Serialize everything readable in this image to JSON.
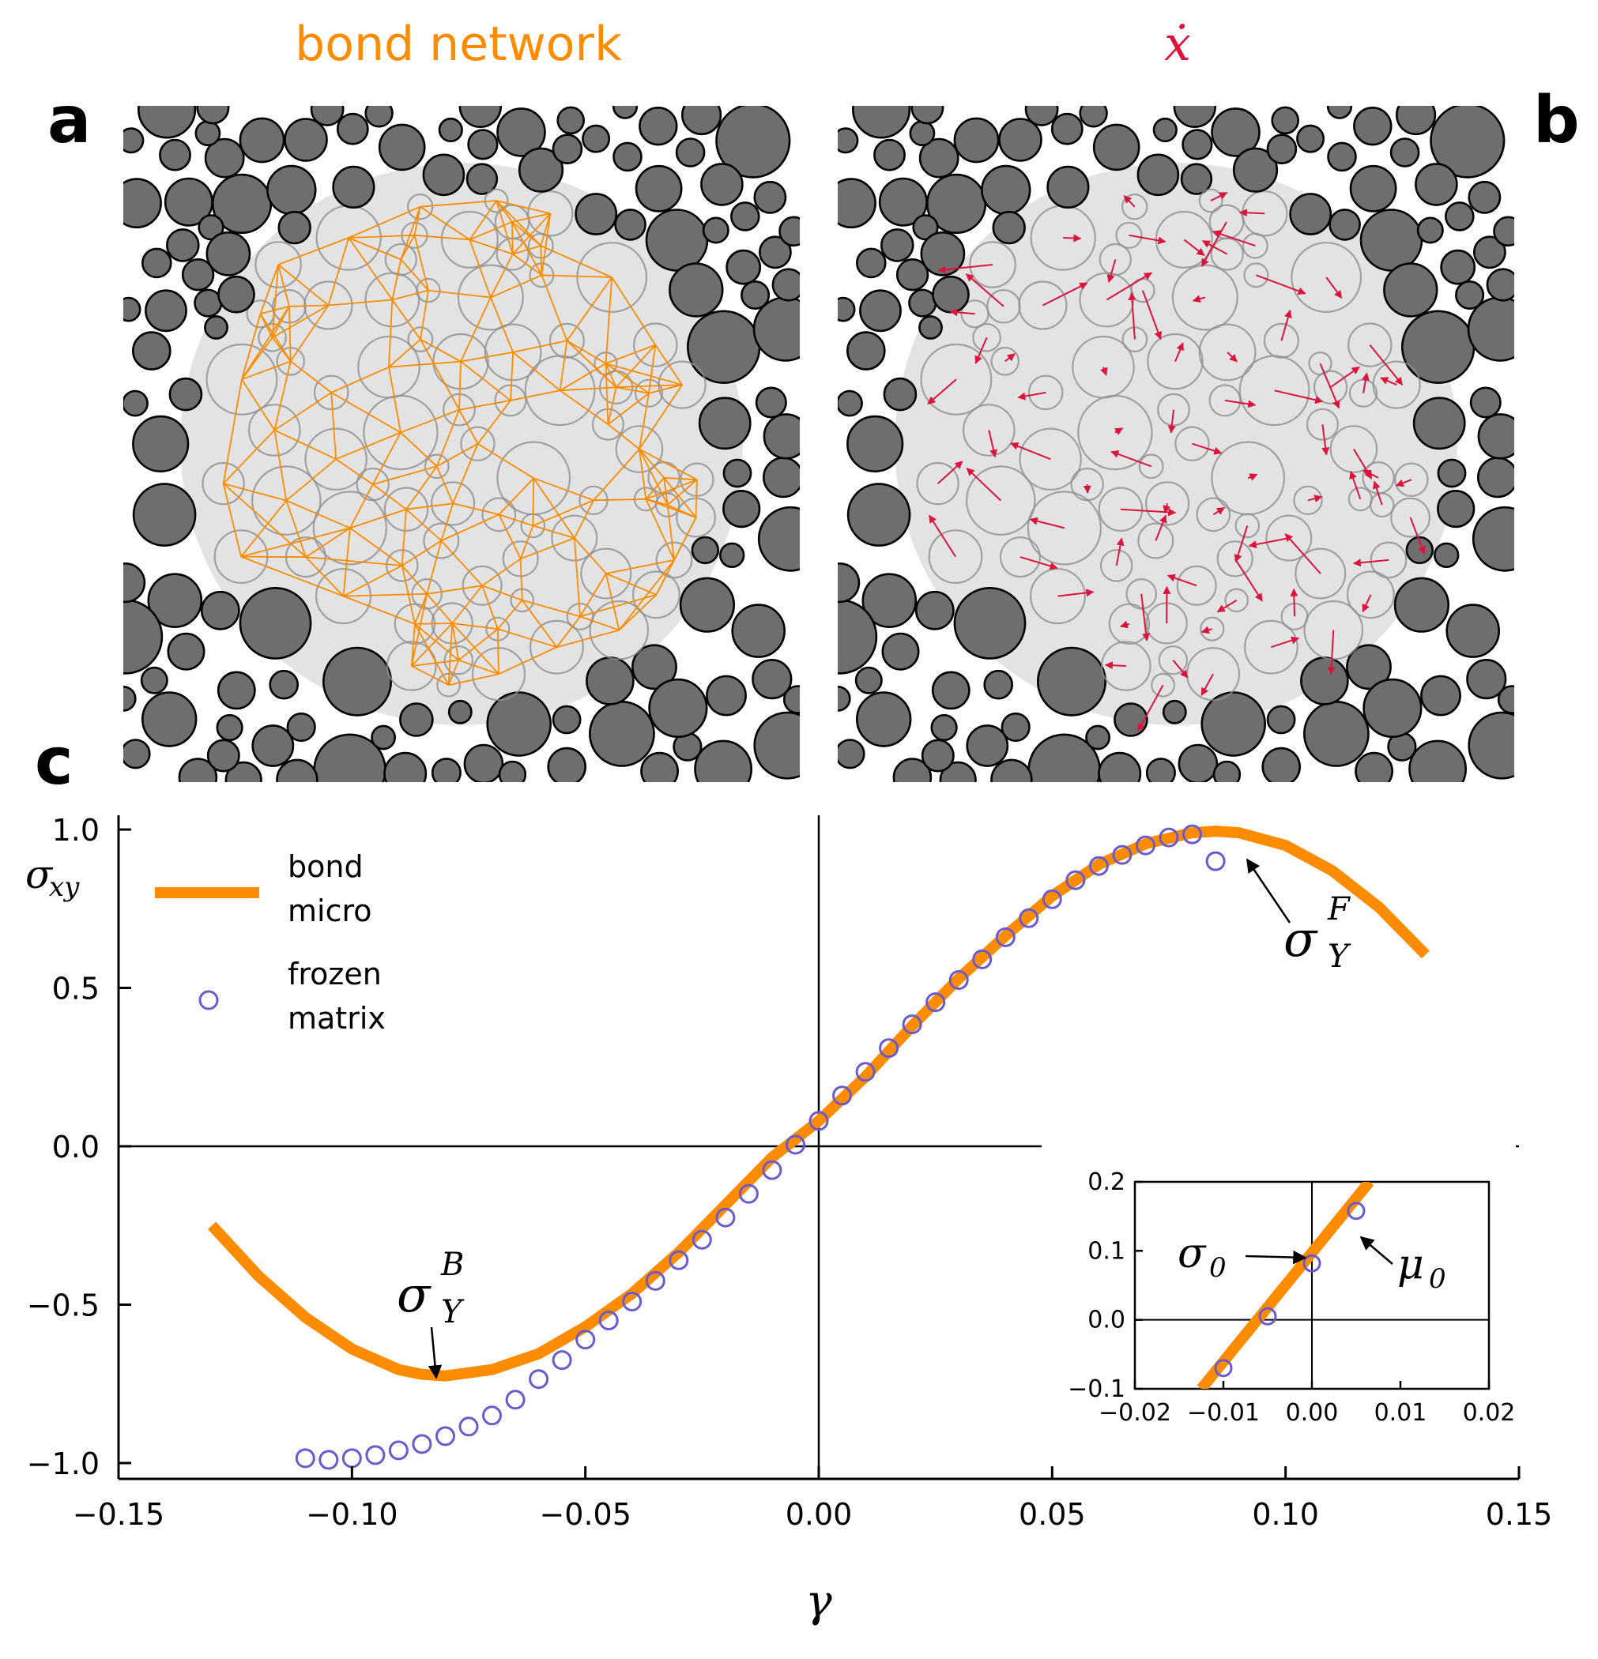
{
  "panels": {
    "a": {
      "letter": "a",
      "title": "bond network",
      "title_color": "#ff8c00",
      "description": "jammed packing with central region and orange bond network"
    },
    "b": {
      "letter": "b",
      "title": "ẋ",
      "title_color": "#dc143c",
      "description": "jammed packing with central region and crimson displacement-rate arrows"
    },
    "c": {
      "letter": "c"
    }
  },
  "colors": {
    "bond": "#ff8c00",
    "frozen": "#6a5acd",
    "arrows": "#dc143c",
    "particle_fill": "#6e6e6e",
    "region_fill": "#e3e3e3",
    "axes": "#000000"
  },
  "chart_data": [
    {
      "type": "line",
      "title": "",
      "xlabel": "γ",
      "ylabel": "σxy",
      "xlim": [
        -0.15,
        0.15
      ],
      "ylim": [
        -1.05,
        1.05
      ],
      "xticks": [
        -0.15,
        -0.1,
        -0.05,
        0.0,
        0.05,
        0.1,
        0.15
      ],
      "xtick_labels": [
        "−0.15",
        "−0.10",
        "−0.05",
        "0.00",
        "0.05",
        "0.10",
        "0.15"
      ],
      "yticks": [
        -1.0,
        -0.5,
        0.0,
        0.5,
        1.0
      ],
      "ytick_labels": [
        "−1.0",
        "−0.5",
        "0.0",
        "0.5",
        "1.0"
      ],
      "legend": {
        "placement": "top-left",
        "entries": [
          {
            "label_lines": [
              "bond",
              "micro"
            ],
            "marker": "line"
          },
          {
            "label_lines": [
              "frozen",
              "matrix"
            ],
            "marker": "circle"
          }
        ]
      },
      "series": [
        {
          "name": "bond micro",
          "style": "line",
          "x": [
            -0.13,
            -0.12,
            -0.11,
            -0.1,
            -0.09,
            -0.085,
            -0.08,
            -0.07,
            -0.06,
            -0.05,
            -0.04,
            -0.03,
            -0.02,
            -0.01,
            0.0,
            0.01,
            0.02,
            0.03,
            0.04,
            0.05,
            0.06,
            0.07,
            0.08,
            0.085,
            0.09,
            0.1,
            0.11,
            0.12,
            0.13
          ],
          "y": [
            -0.25,
            -0.41,
            -0.54,
            -0.64,
            -0.705,
            -0.72,
            -0.725,
            -0.705,
            -0.655,
            -0.57,
            -0.465,
            -0.335,
            -0.185,
            -0.035,
            0.08,
            0.22,
            0.38,
            0.53,
            0.665,
            0.79,
            0.89,
            0.955,
            0.99,
            0.995,
            0.99,
            0.95,
            0.87,
            0.755,
            0.605
          ]
        },
        {
          "name": "frozen matrix",
          "style": "markers",
          "x": [
            -0.11,
            -0.105,
            -0.1,
            -0.095,
            -0.09,
            -0.085,
            -0.08,
            -0.075,
            -0.07,
            -0.065,
            -0.06,
            -0.055,
            -0.05,
            -0.045,
            -0.04,
            -0.035,
            -0.03,
            -0.025,
            -0.02,
            -0.015,
            -0.01,
            -0.005,
            0.0,
            0.005,
            0.01,
            0.015,
            0.02,
            0.025,
            0.03,
            0.035,
            0.04,
            0.045,
            0.05,
            0.055,
            0.06,
            0.065,
            0.07,
            0.075,
            0.08,
            0.085
          ],
          "y": [
            -0.985,
            -0.99,
            -0.985,
            -0.975,
            -0.96,
            -0.94,
            -0.915,
            -0.885,
            -0.85,
            -0.8,
            -0.735,
            -0.675,
            -0.61,
            -0.55,
            -0.49,
            -0.425,
            -0.36,
            -0.295,
            -0.225,
            -0.15,
            -0.075,
            0.005,
            0.08,
            0.16,
            0.235,
            0.31,
            0.385,
            0.455,
            0.525,
            0.59,
            0.66,
            0.72,
            0.78,
            0.84,
            0.885,
            0.92,
            0.95,
            0.975,
            0.985,
            0.9
          ]
        }
      ],
      "annotations": [
        {
          "name": "sigma_Y_F",
          "text": "σ",
          "sub": "Y",
          "sup": "F",
          "points_to": [
            0.088,
            0.91
          ]
        },
        {
          "name": "sigma_Y_B",
          "text": "σ",
          "sub": "Y",
          "sup": "B",
          "points_to": [
            -0.083,
            -0.73
          ]
        }
      ]
    },
    {
      "type": "line",
      "title": "",
      "xlim": [
        -0.02,
        0.02
      ],
      "ylim": [
        -0.1,
        0.2
      ],
      "xticks": [
        -0.02,
        -0.01,
        0.0,
        0.01,
        0.02
      ],
      "xtick_labels": [
        "−0.02",
        "−0.01",
        "0.00",
        "0.01",
        "0.02"
      ],
      "yticks": [
        -0.1,
        0.0,
        0.1,
        0.2
      ],
      "ytick_labels": [
        "−0.1",
        "0.0",
        "0.1",
        "0.2"
      ],
      "series": [
        {
          "name": "bond micro",
          "style": "line",
          "x": [
            -0.0125,
            0.0065
          ],
          "y": [
            -0.1,
            0.2
          ]
        },
        {
          "name": "frozen matrix",
          "style": "markers",
          "x": [
            -0.01,
            -0.005,
            0.0,
            0.005
          ],
          "y": [
            -0.07,
            0.005,
            0.082,
            0.158
          ]
        }
      ],
      "annotations": [
        {
          "name": "sigma_0",
          "text": "σ",
          "sub": "0",
          "points_to": [
            0.0,
            0.082
          ]
        },
        {
          "name": "mu_0",
          "text": "μ",
          "sub": "0",
          "points_to": [
            0.004,
            0.11
          ]
        }
      ]
    }
  ]
}
